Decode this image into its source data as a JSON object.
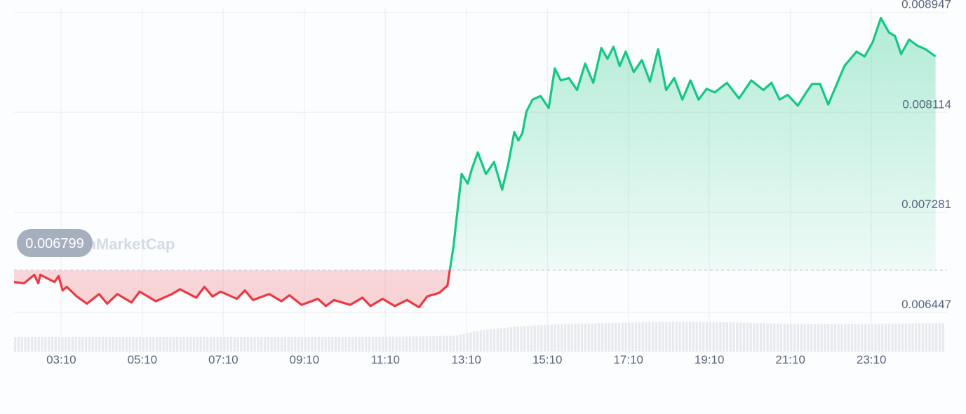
{
  "watermark": "CoinMarketCap",
  "colors": {
    "up": "#16c784",
    "down": "#ea3943",
    "grid": "#eff2f5",
    "reference": "#c7ced8",
    "volume": "#e6e9ee",
    "badge": "#a6afbe"
  },
  "chart_data": {
    "type": "line",
    "title": "",
    "xlabel": "",
    "ylabel": "",
    "reference_value": 0.006799,
    "reference_label": "0.006799",
    "ylim": [
      0.00612,
      0.00905
    ],
    "xlim": [
      2.0,
      25.0
    ],
    "y_ticks": [
      0.008947,
      0.008114,
      0.007281,
      0.006447
    ],
    "y_tick_labels": [
      "0.008947",
      "0.008114",
      "0.007281",
      "0.006447"
    ],
    "x_ticks": [
      3.1667,
      5.1667,
      7.1667,
      9.1667,
      11.1667,
      13.1667,
      15.1667,
      17.1667,
      19.1667,
      21.1667,
      23.1667
    ],
    "x_tick_labels": [
      "03:10",
      "05:10",
      "07:10",
      "09:10",
      "11:10",
      "13:10",
      "15:10",
      "17:10",
      "19:10",
      "21:10",
      "23:10"
    ],
    "grid": true,
    "legend": "none",
    "price": {
      "x": [
        2.0,
        2.25,
        2.5,
        2.6,
        2.65,
        3.0,
        3.1,
        3.2,
        3.3,
        3.55,
        3.8,
        4.1,
        4.3,
        4.55,
        4.9,
        5.1,
        5.5,
        5.9,
        6.1,
        6.5,
        6.7,
        6.9,
        7.1,
        7.5,
        7.7,
        7.9,
        8.3,
        8.6,
        8.8,
        9.1,
        9.5,
        9.7,
        9.9,
        10.3,
        10.6,
        10.8,
        11.1,
        11.4,
        11.7,
        12.0,
        12.2,
        12.5,
        12.7,
        12.85,
        12.95,
        13.05,
        13.2,
        13.3,
        13.45,
        13.65,
        13.85,
        14.05,
        14.2,
        14.35,
        14.45,
        14.55,
        14.65,
        14.8,
        15.0,
        15.2,
        15.35,
        15.5,
        15.7,
        15.9,
        16.1,
        16.3,
        16.5,
        16.65,
        16.8,
        16.95,
        17.1,
        17.3,
        17.5,
        17.7,
        17.9,
        18.1,
        18.3,
        18.5,
        18.7,
        18.9,
        19.1,
        19.3,
        19.6,
        19.9,
        20.2,
        20.5,
        20.7,
        20.9,
        21.1,
        21.35,
        21.5,
        21.7,
        21.9,
        22.1,
        22.5,
        22.8,
        23.0,
        23.2,
        23.4,
        23.6,
        23.75,
        23.9,
        24.1,
        24.3,
        24.5,
        24.75
      ],
      "y": [
        0.0067,
        0.00669,
        0.00676,
        0.00669,
        0.00676,
        0.0067,
        0.00675,
        0.00663,
        0.00666,
        0.00658,
        0.00652,
        0.0066,
        0.00652,
        0.0066,
        0.00653,
        0.00662,
        0.00654,
        0.0066,
        0.00664,
        0.00657,
        0.00666,
        0.00658,
        0.00662,
        0.00656,
        0.00663,
        0.00655,
        0.0066,
        0.00654,
        0.00659,
        0.00651,
        0.00656,
        0.0065,
        0.00655,
        0.00651,
        0.00657,
        0.0065,
        0.00656,
        0.0065,
        0.00655,
        0.00649,
        0.00658,
        0.00661,
        0.00667,
        0.007,
        0.0073,
        0.0076,
        0.00752,
        0.00764,
        0.00778,
        0.0076,
        0.0077,
        0.00747,
        0.00768,
        0.00795,
        0.00788,
        0.00794,
        0.00812,
        0.00822,
        0.00825,
        0.00815,
        0.00848,
        0.00838,
        0.0084,
        0.0083,
        0.00852,
        0.00836,
        0.00865,
        0.00856,
        0.00866,
        0.0085,
        0.00862,
        0.00845,
        0.00855,
        0.00837,
        0.00864,
        0.0083,
        0.0084,
        0.00822,
        0.00838,
        0.00822,
        0.00831,
        0.00828,
        0.00836,
        0.00823,
        0.00838,
        0.0083,
        0.00836,
        0.00822,
        0.00826,
        0.00817,
        0.00825,
        0.00835,
        0.00835,
        0.00818,
        0.0085,
        0.00862,
        0.00858,
        0.0087,
        0.0089,
        0.00878,
        0.00875,
        0.0086,
        0.00872,
        0.00867,
        0.00864,
        0.00858
      ]
    },
    "volume": {
      "x": [
        2.0,
        4.0,
        6.0,
        8.0,
        10.0,
        12.0,
        12.9,
        13.5,
        14.5,
        15.5,
        16.5,
        17.5,
        18.5,
        19.5,
        20.5,
        21.5,
        22.5,
        23.5,
        24.5,
        25.0
      ],
      "value": [
        0.3,
        0.3,
        0.3,
        0.3,
        0.3,
        0.31,
        0.33,
        0.44,
        0.52,
        0.56,
        0.58,
        0.6,
        0.61,
        0.6,
        0.58,
        0.56,
        0.56,
        0.57,
        0.58,
        0.58
      ]
    }
  }
}
